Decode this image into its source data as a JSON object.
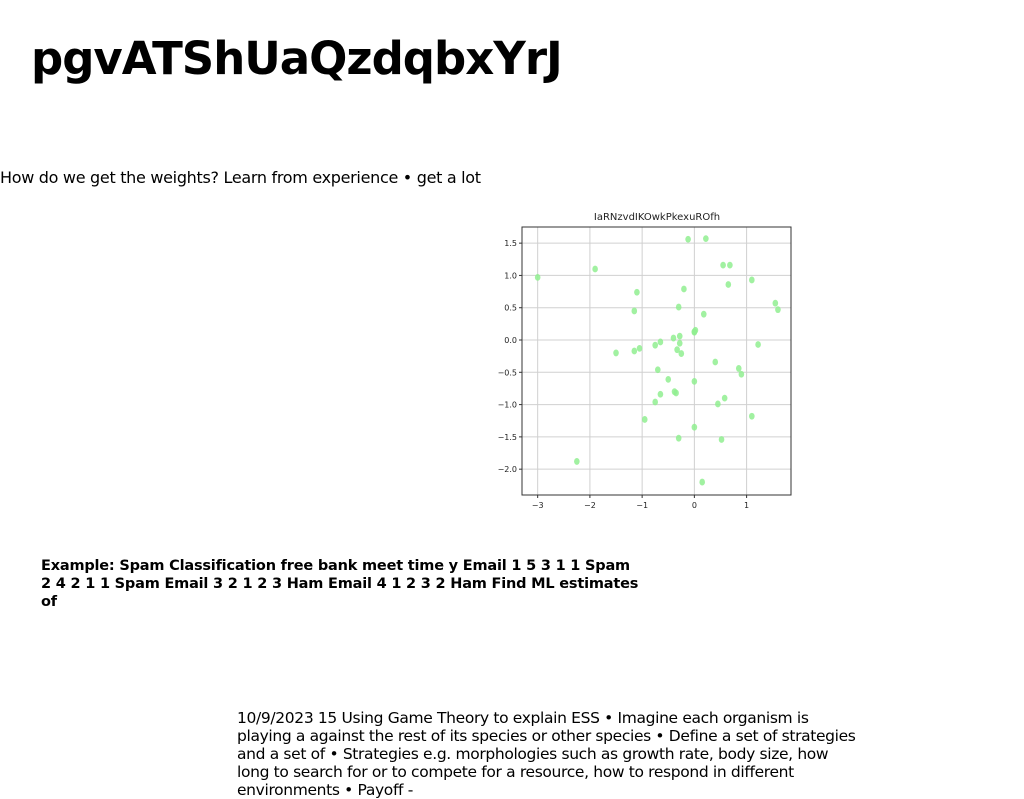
{
  "slide": {
    "title": "pgvATShUaQzdqbxYrJ",
    "intro": "How do we get the weights? Learn from experience • get a lot",
    "example": "Example: Spam Classification free bank meet time y Email 1 5 3 1 1 Spam 2 4 2 1 1 Spam Email 3 2 1 2 3 Ham Email 4 1 2 3 2 Ham Find ML estimates of",
    "footer": "10/9/2023 15 Using Game Theory to explain ESS • Imagine each organism is playing a against the rest of its species or other species • Define a set of strategies and a set of • Strategies e.g. morphologies such as growth rate, body size, how long to search for or to compete for a resource, how to respond in different environments • Payoff -"
  },
  "chart_data": {
    "type": "scatter",
    "title": "IaRNzvdIKOwkPkexuROfh",
    "xlabel": "",
    "ylabel": "",
    "xlim": [
      -3.3,
      1.85
    ],
    "ylim": [
      -2.4,
      1.75
    ],
    "xticks": [
      -3,
      -2,
      -1,
      0,
      1
    ],
    "yticks": [
      1.5,
      1.0,
      0.5,
      0.0,
      -0.5,
      -1.0,
      -1.5,
      -2.0
    ],
    "xtick_labels": [
      "−3",
      "−2",
      "−1",
      "0",
      "1"
    ],
    "ytick_labels": [
      "1.5",
      "1.0",
      "0.5",
      "0.0",
      "−0.5",
      "−1.0",
      "−1.5",
      "−2.0"
    ],
    "grid": true,
    "color": "#90ee90",
    "points": [
      {
        "x": -3.0,
        "y": 0.97
      },
      {
        "x": -1.9,
        "y": 1.1
      },
      {
        "x": -2.25,
        "y": -1.88
      },
      {
        "x": -1.1,
        "y": 0.74
      },
      {
        "x": -1.15,
        "y": 0.45
      },
      {
        "x": -1.5,
        "y": -0.2
      },
      {
        "x": -1.15,
        "y": -0.17
      },
      {
        "x": -1.05,
        "y": -0.13
      },
      {
        "x": -0.95,
        "y": -1.23
      },
      {
        "x": -0.75,
        "y": -0.08
      },
      {
        "x": -0.7,
        "y": -0.46
      },
      {
        "x": -0.65,
        "y": -0.03
      },
      {
        "x": -0.65,
        "y": -0.84
      },
      {
        "x": -0.75,
        "y": -0.96
      },
      {
        "x": -0.5,
        "y": -0.61
      },
      {
        "x": -0.4,
        "y": 0.03
      },
      {
        "x": -0.38,
        "y": -0.8
      },
      {
        "x": -0.35,
        "y": -0.82
      },
      {
        "x": -0.33,
        "y": -0.15
      },
      {
        "x": -0.3,
        "y": 0.51
      },
      {
        "x": -0.28,
        "y": 0.06
      },
      {
        "x": -0.28,
        "y": -0.05
      },
      {
        "x": -0.25,
        "y": -0.21
      },
      {
        "x": -0.3,
        "y": -1.52
      },
      {
        "x": -0.2,
        "y": 0.79
      },
      {
        "x": -0.12,
        "y": 1.56
      },
      {
        "x": 0.0,
        "y": 0.12
      },
      {
        "x": 0.0,
        "y": 0.13
      },
      {
        "x": 0.02,
        "y": 0.15
      },
      {
        "x": 0.0,
        "y": -0.64
      },
      {
        "x": 0.0,
        "y": -1.35
      },
      {
        "x": 0.15,
        "y": -2.2
      },
      {
        "x": 0.18,
        "y": 0.4
      },
      {
        "x": 0.22,
        "y": 1.57
      },
      {
        "x": 0.4,
        "y": -0.34
      },
      {
        "x": 0.45,
        "y": -0.99
      },
      {
        "x": 0.52,
        "y": -1.54
      },
      {
        "x": 0.55,
        "y": 1.16
      },
      {
        "x": 0.58,
        "y": -0.9
      },
      {
        "x": 0.65,
        "y": 0.86
      },
      {
        "x": 0.68,
        "y": 1.16
      },
      {
        "x": 0.85,
        "y": -0.44
      },
      {
        "x": 0.9,
        "y": -0.53
      },
      {
        "x": 1.1,
        "y": 0.93
      },
      {
        "x": 1.1,
        "y": -1.18
      },
      {
        "x": 1.22,
        "y": -0.07
      },
      {
        "x": 1.55,
        "y": 0.57
      },
      {
        "x": 1.6,
        "y": 0.47
      }
    ]
  }
}
